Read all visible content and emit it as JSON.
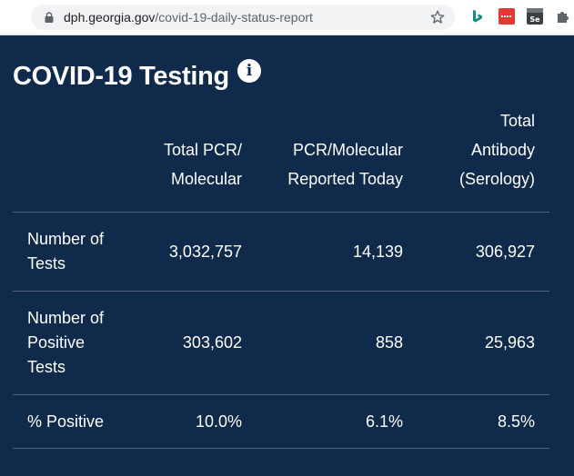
{
  "browser": {
    "url_domain": "dph.georgia.gov",
    "url_path": "/covid-19-daily-status-report",
    "icons": [
      "lock-icon",
      "star-icon",
      "bing-icon",
      "red-extension-icon",
      "se-extension-icon",
      "puzzle-icon"
    ]
  },
  "section": {
    "title": "COVID-19 Testing",
    "info_icon": "i"
  },
  "table": {
    "headers": {
      "col1": [
        "Total PCR/",
        "Molecular"
      ],
      "col2": [
        "PCR/Molecular",
        "Reported Today"
      ],
      "col3": [
        "Total",
        "Antibody",
        "(Serology)"
      ]
    },
    "rows": [
      {
        "label": [
          "Number of",
          "Tests"
        ],
        "values": [
          "3,032,757",
          "14,139",
          "306,927"
        ]
      },
      {
        "label": [
          "Number of",
          "Positive",
          "Tests"
        ],
        "values": [
          "303,602",
          "858",
          "25,963"
        ]
      },
      {
        "label": [
          "% Positive"
        ],
        "values": [
          "10.0%",
          "6.1%",
          "8.5%"
        ]
      }
    ]
  },
  "colors": {
    "background": "#0f2a4a",
    "text": "#ffffff",
    "divider": "#53627a"
  }
}
